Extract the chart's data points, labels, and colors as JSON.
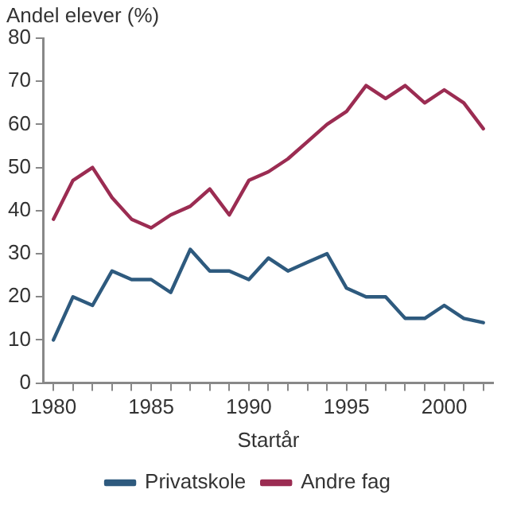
{
  "chart_data": {
    "type": "line",
    "ylabel": "Andel elever (%)",
    "xlabel": "Startår",
    "x": [
      1980,
      1981,
      1982,
      1983,
      1984,
      1985,
      1986,
      1987,
      1988,
      1989,
      1990,
      1991,
      1992,
      1993,
      1994,
      1995,
      1996,
      1997,
      1998,
      1999,
      2000,
      2001,
      2002
    ],
    "series": [
      {
        "name": "Privatskole",
        "color": "#2e5a7e",
        "values": [
          10,
          20,
          18,
          26,
          24,
          24,
          21,
          31,
          26,
          26,
          24,
          29,
          26,
          28,
          30,
          22,
          20,
          20,
          15,
          15,
          18,
          15,
          14
        ]
      },
      {
        "name": "Andre fag",
        "color": "#9b2c52",
        "values": [
          38,
          47,
          50,
          43,
          38,
          36,
          39,
          41,
          45,
          39,
          47,
          49,
          52,
          56,
          60,
          63,
          69,
          66,
          69,
          65,
          68,
          65,
          59
        ]
      }
    ],
    "xlim": [
      1979.5,
      2002.5
    ],
    "xticks": [
      1980,
      {
        "value": 1981,
        "label": null
      },
      {
        "value": 1982,
        "label": null
      },
      {
        "value": 1983,
        "label": null
      },
      {
        "value": 1984,
        "label": null
      },
      1985,
      {
        "value": 1986,
        "label": null
      },
      {
        "value": 1987,
        "label": null
      },
      {
        "value": 1988,
        "label": null
      },
      {
        "value": 1989,
        "label": null
      },
      1990,
      {
        "value": 1991,
        "label": null
      },
      {
        "value": 1992,
        "label": null
      },
      {
        "value": 1993,
        "label": null
      },
      {
        "value": 1994,
        "label": null
      },
      1995,
      {
        "value": 1996,
        "label": null
      },
      {
        "value": 1997,
        "label": null
      },
      {
        "value": 1998,
        "label": null
      },
      {
        "value": 1999,
        "label": null
      },
      2000,
      {
        "value": 2001,
        "label": null
      },
      {
        "value": 2002,
        "label": null
      }
    ],
    "ylim": [
      0,
      80
    ],
    "yticks": [
      0,
      10,
      20,
      30,
      40,
      50,
      60,
      70,
      80
    ],
    "grid": false,
    "legend": "bottom",
    "marker": "none",
    "line_style": "solid"
  }
}
